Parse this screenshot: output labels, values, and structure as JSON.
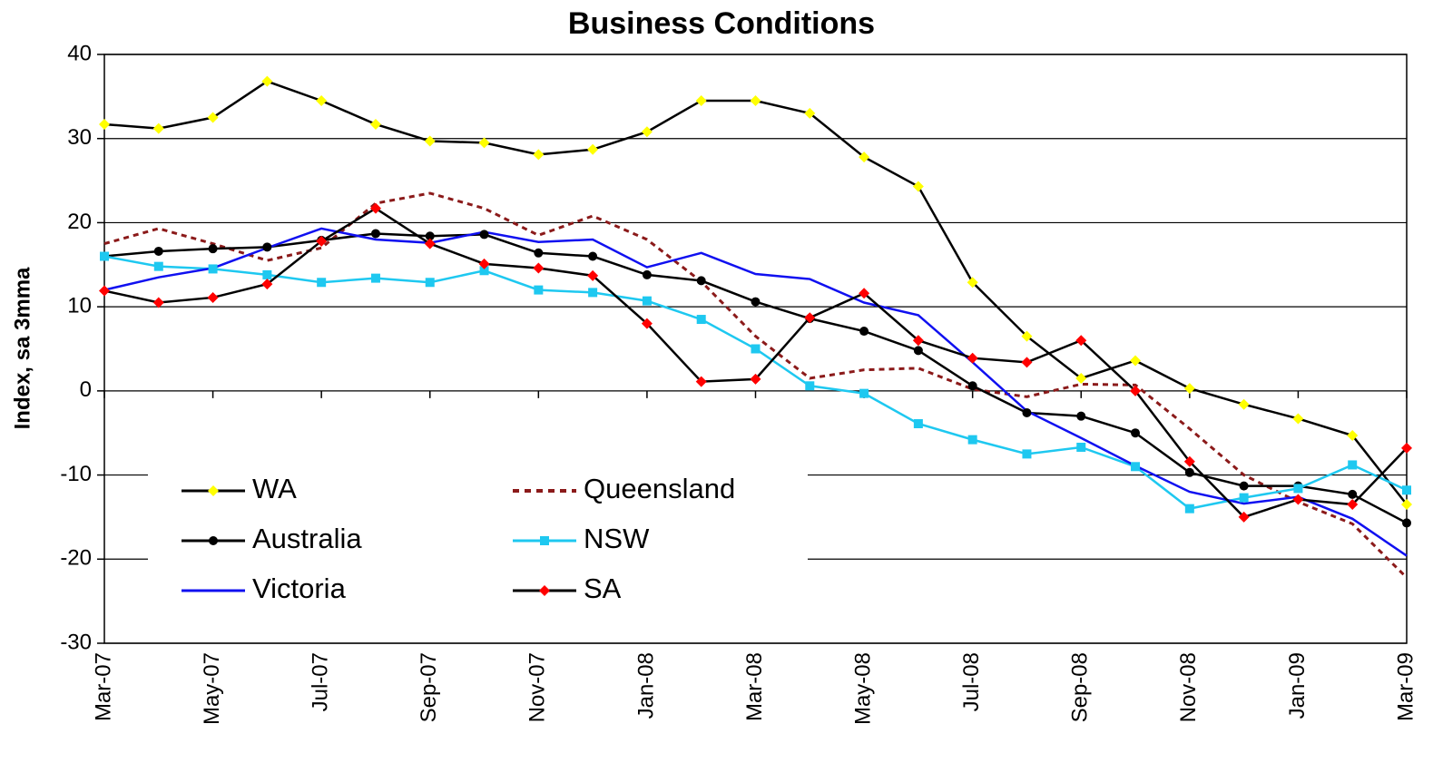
{
  "chart_data": {
    "type": "line",
    "title": "Business Conditions",
    "y_label": "Index, sa 3mma",
    "categories": [
      "Mar-07",
      null,
      "May-07",
      null,
      "Jul-07",
      null,
      "Sep-07",
      null,
      "Nov-07",
      null,
      "Jan-08",
      null,
      "Mar-08",
      null,
      "May-08",
      null,
      "Jul-08",
      null,
      "Sep-08",
      null,
      "Nov-08",
      null,
      "Jan-09",
      null,
      "Mar-09"
    ],
    "ylim": [
      -30,
      40
    ],
    "yticks": [
      -30,
      -20,
      -10,
      0,
      10,
      20,
      30,
      40
    ],
    "grid": true,
    "legend": "lower left",
    "series": [
      {
        "name": "WA",
        "color": "#000000",
        "marker": "diamond",
        "marker_color": "#ffff00",
        "dashed": false,
        "values": [
          31.7,
          31.2,
          32.5,
          36.8,
          34.5,
          31.7,
          29.7,
          29.5,
          28.1,
          28.7,
          30.8,
          34.5,
          34.5,
          33.0,
          27.8,
          24.3,
          12.9,
          6.5,
          1.5,
          3.6,
          0.3,
          -1.6,
          -3.3,
          -5.3,
          -13.5
        ]
      },
      {
        "name": "Queensland",
        "color": "#8b1a1a",
        "marker": null,
        "marker_color": null,
        "dashed": true,
        "values": [
          17.5,
          19.3,
          17.5,
          15.5,
          17.0,
          22.3,
          23.5,
          21.7,
          18.5,
          20.8,
          18.0,
          13.0,
          6.5,
          1.5,
          2.5,
          2.7,
          0.2,
          -0.7,
          0.8,
          0.7,
          -4.5,
          -10.0,
          -13.2,
          -15.8,
          -22.2
        ]
      },
      {
        "name": "Australia",
        "color": "#000000",
        "marker": "circle",
        "marker_color": "#000000",
        "dashed": false,
        "values": [
          16.0,
          16.6,
          16.9,
          17.1,
          17.9,
          18.7,
          18.4,
          18.6,
          16.4,
          16.0,
          13.8,
          13.1,
          10.6,
          8.6,
          7.1,
          4.8,
          0.6,
          -2.6,
          -3.0,
          -5.0,
          -9.7,
          -11.3,
          -11.3,
          -12.3,
          -15.7
        ]
      },
      {
        "name": "NSW",
        "color": "#1ec8f0",
        "marker": "square",
        "marker_color": "#1ec8f0",
        "dashed": false,
        "values": [
          16.0,
          14.8,
          14.5,
          13.8,
          12.9,
          13.4,
          12.9,
          14.3,
          12.0,
          11.7,
          10.7,
          8.5,
          5.0,
          0.6,
          -0.3,
          -3.9,
          -5.8,
          -7.5,
          -6.7,
          -9.0,
          -14.0,
          -12.7,
          -11.6,
          -8.8,
          -11.8
        ]
      },
      {
        "name": "Victoria",
        "color": "#1010f0",
        "marker": null,
        "marker_color": null,
        "dashed": false,
        "values": [
          12.0,
          13.5,
          14.6,
          17.0,
          19.3,
          18.0,
          17.6,
          18.9,
          17.7,
          18.0,
          14.7,
          16.4,
          13.9,
          13.3,
          10.5,
          9.0,
          3.4,
          -2.4,
          -5.6,
          -8.9,
          -12.0,
          -13.4,
          -12.6,
          -15.2,
          -19.6
        ]
      },
      {
        "name": "SA",
        "color": "#000000",
        "marker": "diamond",
        "marker_color": "#ff0000",
        "dashed": false,
        "values": [
          11.9,
          10.5,
          11.1,
          12.7,
          17.8,
          21.7,
          17.5,
          15.1,
          14.6,
          13.7,
          8.0,
          1.1,
          1.4,
          8.7,
          11.6,
          6.0,
          3.9,
          3.4,
          6.0,
          0.0,
          -8.4,
          -15.0,
          -12.9,
          -13.5,
          -6.8
        ]
      }
    ]
  }
}
